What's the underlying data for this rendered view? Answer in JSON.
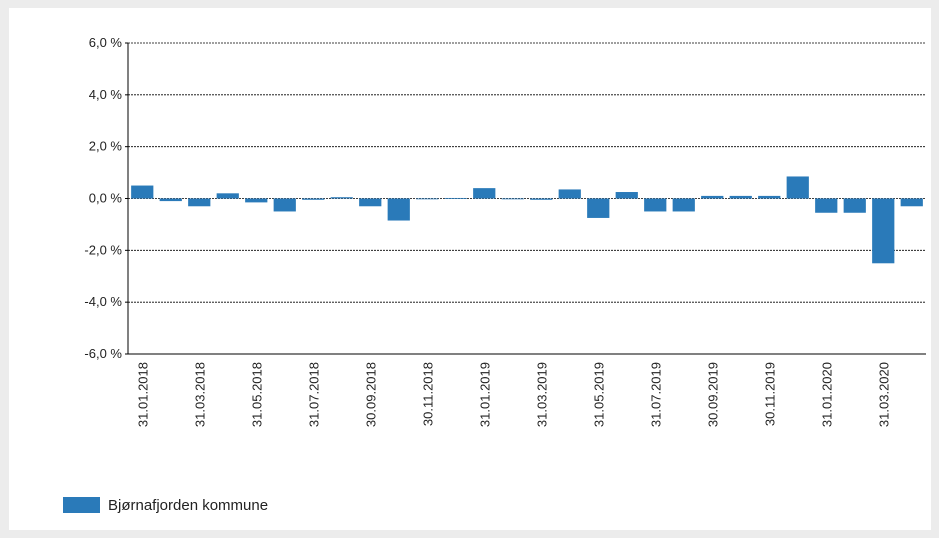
{
  "chart_data": {
    "type": "bar",
    "categories": [
      "31.01.2018",
      null,
      "31.03.2018",
      null,
      "31.05.2018",
      null,
      "31.07.2018",
      null,
      "30.09.2018",
      null,
      "30.11.2018",
      null,
      "31.01.2019",
      null,
      "31.03.2019",
      null,
      "31.05.2019",
      null,
      "31.07.2019",
      null,
      "30.09.2019",
      null,
      "30.11.2019",
      null,
      "31.01.2020",
      null,
      "31.03.2020",
      null
    ],
    "series": [
      {
        "name": "Bjørnafjorden kommune",
        "color": "#2a7ab9",
        "values": [
          0.5,
          -0.1,
          -0.3,
          0.2,
          -0.15,
          -0.5,
          -0.05,
          0.05,
          -0.3,
          -0.85,
          0.0,
          0.02,
          0.4,
          0.0,
          -0.05,
          0.35,
          -0.75,
          0.25,
          -0.5,
          -0.5,
          0.1,
          0.1,
          0.1,
          0.85,
          -0.55,
          -0.55,
          -2.5,
          -0.3
        ]
      }
    ],
    "ylim": [
      -6,
      6
    ],
    "yticks": [
      {
        "value": -6,
        "label": "-6,0 %"
      },
      {
        "value": -4,
        "label": "-4,0 %"
      },
      {
        "value": -2,
        "label": "-2,0 %"
      },
      {
        "value": 0,
        "label": "0,0 %"
      },
      {
        "value": 2,
        "label": "2,0 %"
      },
      {
        "value": 4,
        "label": "4,0 %"
      },
      {
        "value": 6,
        "label": "6,0 %"
      }
    ],
    "grid": true
  }
}
